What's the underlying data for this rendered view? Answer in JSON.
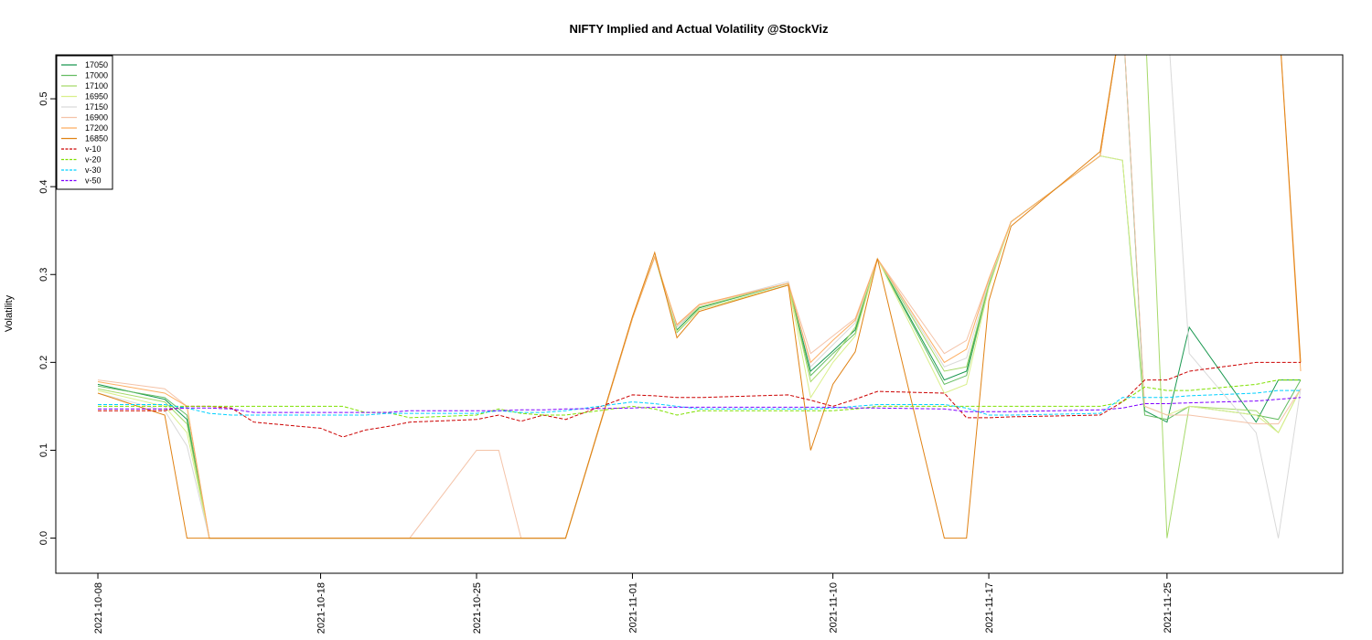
{
  "chart_data": {
    "type": "line",
    "title": "NIFTY Implied and Actual Volatility @StockViz",
    "xlabel": "",
    "ylabel": "Volatility",
    "ylim": [
      -0.04,
      0.55
    ],
    "yticks": [
      "0.0",
      "0.1",
      "0.2",
      "0.3",
      "0.4",
      "0.5"
    ],
    "xticks": [
      "2021-10-08",
      "2021-10-18",
      "2021-10-25",
      "2021-11-01",
      "2021-11-10",
      "2021-11-17",
      "2021-11-25"
    ],
    "legend_position": "top-left",
    "x": [
      "2021-10-08",
      "2021-10-11",
      "2021-10-12",
      "2021-10-13",
      "2021-10-14",
      "2021-10-15",
      "2021-10-18",
      "2021-10-19",
      "2021-10-20",
      "2021-10-21",
      "2021-10-22",
      "2021-10-25",
      "2021-10-26",
      "2021-10-27",
      "2021-10-28",
      "2021-10-29",
      "2021-11-01",
      "2021-11-02",
      "2021-11-03",
      "2021-11-04",
      "2021-11-08",
      "2021-11-09",
      "2021-11-10",
      "2021-11-11",
      "2021-11-12",
      "2021-11-15",
      "2021-11-16",
      "2021-11-17",
      "2021-11-18",
      "2021-11-22",
      "2021-11-23",
      "2021-11-24",
      "2021-11-25",
      "2021-11-26",
      "2021-11-29",
      "2021-11-30",
      "2021-12-01"
    ],
    "series": [
      {
        "name": "17050",
        "color": "#1a9850",
        "dash": "",
        "values": [
          0.175,
          0.158,
          0.135,
          0,
          0,
          0,
          0,
          0,
          0,
          0,
          0,
          0,
          0,
          0,
          0,
          0,
          0.25,
          0.32,
          0.237,
          0.262,
          0.29,
          0.19,
          0.213,
          0.237,
          0.318,
          0.18,
          0.19,
          0.29,
          0.36,
          0.435,
          0.6,
          0.145,
          0.132,
          0.24,
          0.132,
          0.18,
          0.18
        ]
      },
      {
        "name": "17000",
        "color": "#66bd63",
        "dash": "",
        "values": [
          0.173,
          0.16,
          0.14,
          0,
          0,
          0,
          0,
          0,
          0,
          0,
          0,
          0,
          0,
          0,
          0,
          0,
          0.25,
          0.32,
          0.234,
          0.26,
          0.288,
          0.185,
          0.21,
          0.233,
          0.318,
          0.175,
          0.185,
          0.288,
          0.36,
          0.435,
          0.43,
          0.14,
          0.135,
          0.15,
          0.14,
          0.135,
          0.18
        ]
      },
      {
        "name": "17100",
        "color": "#a6d96a",
        "dash": "",
        "values": [
          0.17,
          0.155,
          0.13,
          0,
          0,
          0,
          0,
          0,
          0,
          0,
          0,
          0,
          0,
          0,
          0,
          0,
          0.25,
          0.32,
          0.24,
          0.263,
          0.29,
          0.178,
          0.205,
          0.24,
          0.318,
          0.19,
          0.195,
          0.29,
          0.36,
          0.435,
          0.6,
          0.6,
          0,
          0.15,
          0.145,
          0.12,
          0.17
        ]
      },
      {
        "name": "16950",
        "color": "#d9ef8b",
        "dash": "",
        "values": [
          0.168,
          0.15,
          0.12,
          0,
          0,
          0,
          0,
          0,
          0,
          0,
          0,
          0,
          0,
          0,
          0,
          0,
          0.25,
          0.32,
          0.235,
          0.26,
          0.288,
          0.16,
          0.2,
          0.23,
          0.318,
          0.165,
          0.175,
          0.285,
          0.36,
          0.435,
          0.43,
          0.15,
          0.14,
          0.15,
          0.14,
          0.12,
          0.17
        ]
      },
      {
        "name": "17150",
        "color": "#d9d9d9",
        "dash": "",
        "values": [
          0.165,
          0.145,
          0.105,
          0,
          0,
          0,
          0,
          0,
          0,
          0,
          0,
          0,
          0,
          0,
          0,
          0,
          0.25,
          0.32,
          0.24,
          0.265,
          0.292,
          0.195,
          0.22,
          0.245,
          0.318,
          0.195,
          0.205,
          0.292,
          0.36,
          0.435,
          0.6,
          0.6,
          0.6,
          0.21,
          0.12,
          0,
          0.17
        ]
      },
      {
        "name": "16900",
        "color": "#f4c3a8",
        "dash": "",
        "values": [
          0.18,
          0.17,
          0.15,
          0,
          0,
          0,
          0,
          0,
          0,
          0,
          0,
          0.1,
          0.1,
          0,
          0,
          0,
          0.25,
          0.32,
          0.242,
          0.265,
          0.29,
          0.21,
          0.23,
          0.25,
          0.318,
          0.21,
          0.225,
          0.295,
          0.36,
          0.435,
          0.6,
          0.15,
          0.14,
          0.14,
          0.13,
          0.13,
          0.17
        ]
      },
      {
        "name": "17200",
        "color": "#fdae61",
        "dash": "",
        "values": [
          0.178,
          0.165,
          0.15,
          0,
          0,
          0,
          0,
          0,
          0,
          0,
          0,
          0,
          0,
          0,
          0,
          0,
          0.25,
          0.32,
          0.243,
          0.266,
          0.29,
          0.2,
          0.225,
          0.248,
          0.318,
          0.2,
          0.215,
          0.295,
          0.36,
          0.435,
          0.6,
          0.6,
          0.6,
          0.6,
          0.6,
          0.6,
          0.19
        ]
      },
      {
        "name": "16850",
        "color": "#e08214",
        "dash": "",
        "values": [
          0.165,
          0.14,
          0,
          0,
          0,
          0,
          0,
          0,
          0,
          0,
          0,
          0,
          0,
          0,
          0,
          0,
          0.252,
          0.325,
          0.228,
          0.258,
          0.288,
          0.1,
          0.175,
          0.212,
          0.318,
          0,
          0,
          0.27,
          0.355,
          0.44,
          0.6,
          0.6,
          0.6,
          0.6,
          0.6,
          0.6,
          0.2
        ]
      },
      {
        "name": "v-10",
        "color": "#cc0000",
        "dash": "4,2",
        "values": [
          0.145,
          0.145,
          0.15,
          0.15,
          0.148,
          0.132,
          0.125,
          0.115,
          0.123,
          0.127,
          0.132,
          0.135,
          0.14,
          0.133,
          0.14,
          0.135,
          0.163,
          0.162,
          0.16,
          0.16,
          0.163,
          0.157,
          0.15,
          0.158,
          0.167,
          0.165,
          0.137,
          0.137,
          0.138,
          0.14,
          0.155,
          0.18,
          0.18,
          0.19,
          0.2,
          0.2,
          0.2
        ]
      },
      {
        "name": "v-20",
        "color": "#7fe000",
        "dash": "4,2",
        "values": [
          0.15,
          0.15,
          0.15,
          0.15,
          0.15,
          0.15,
          0.15,
          0.15,
          0.143,
          0.143,
          0.137,
          0.14,
          0.147,
          0.142,
          0.14,
          0.14,
          0.15,
          0.147,
          0.14,
          0.145,
          0.145,
          0.145,
          0.145,
          0.147,
          0.15,
          0.15,
          0.15,
          0.15,
          0.15,
          0.15,
          0.155,
          0.172,
          0.168,
          0.168,
          0.175,
          0.18,
          0.18
        ]
      },
      {
        "name": "v-30",
        "color": "#00d0ff",
        "dash": "4,2",
        "values": [
          0.152,
          0.152,
          0.148,
          0.142,
          0.14,
          0.14,
          0.14,
          0.14,
          0.14,
          0.142,
          0.142,
          0.142,
          0.145,
          0.143,
          0.143,
          0.145,
          0.155,
          0.153,
          0.15,
          0.147,
          0.147,
          0.147,
          0.148,
          0.15,
          0.152,
          0.152,
          0.148,
          0.14,
          0.14,
          0.142,
          0.16,
          0.16,
          0.16,
          0.162,
          0.165,
          0.168,
          0.168
        ]
      },
      {
        "name": "v-50",
        "color": "#7f00ff",
        "dash": "4,2",
        "values": [
          0.147,
          0.147,
          0.148,
          0.148,
          0.147,
          0.143,
          0.143,
          0.143,
          0.143,
          0.143,
          0.145,
          0.145,
          0.145,
          0.146,
          0.146,
          0.147,
          0.148,
          0.149,
          0.149,
          0.149,
          0.149,
          0.149,
          0.149,
          0.148,
          0.148,
          0.147,
          0.144,
          0.144,
          0.144,
          0.146,
          0.148,
          0.153,
          0.153,
          0.154,
          0.156,
          0.158,
          0.16
        ]
      }
    ]
  }
}
